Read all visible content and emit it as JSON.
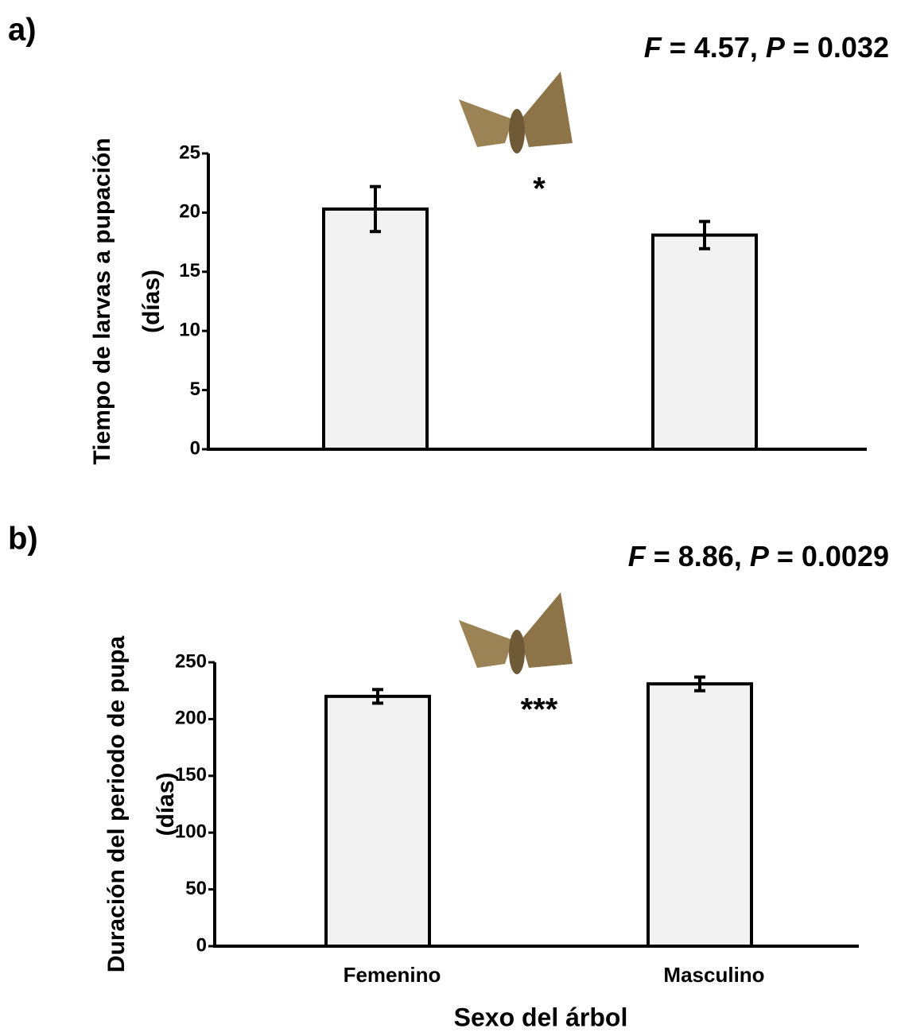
{
  "chart_data": [
    {
      "type": "bar",
      "panel": "a)",
      "stat_parts": [
        "F",
        " = 4.57, ",
        "P",
        " = 0.032"
      ],
      "significance": "*",
      "ylabel": [
        "Tiempo de larvas a pupación",
        "(días)"
      ],
      "categories": [
        null,
        null
      ],
      "values": [
        20.3,
        18.1
      ],
      "errors": [
        1.9,
        1.15
      ],
      "color": "#f2f2f2",
      "ylim": [
        0,
        25
      ],
      "yticks": [
        0,
        5,
        10,
        15,
        20,
        25
      ]
    },
    {
      "type": "bar",
      "panel": "b)",
      "stat_parts": [
        "F",
        " = 8.86, ",
        "P",
        " = 0.0029"
      ],
      "significance": "***",
      "ylabel": [
        "Duración del periodo de pupa",
        "(días)"
      ],
      "xlabel": "Sexo del árbol",
      "categories": [
        "Femenino",
        "Masculino"
      ],
      "values": [
        220,
        231
      ],
      "errors": [
        6,
        6
      ],
      "color": "#f2f2f2",
      "ylim": [
        0,
        250
      ],
      "yticks": [
        0,
        50,
        100,
        150,
        200,
        250
      ]
    }
  ]
}
